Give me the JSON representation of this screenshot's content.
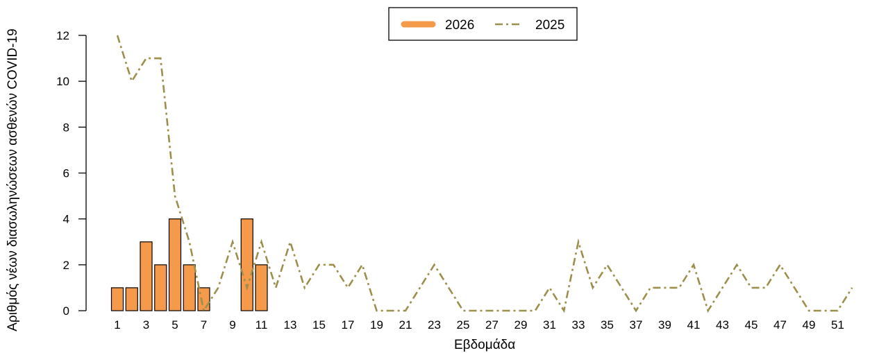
{
  "chart_data": {
    "type": "bar+line",
    "xlabel": "Εβδομάδα",
    "ylabel": "Αριθμός νέων διασωληνώσεων ασθενών COVID-19",
    "ylim": [
      0,
      12
    ],
    "yticks": [
      0,
      2,
      4,
      6,
      8,
      10,
      12
    ],
    "xlim": [
      0,
      53
    ],
    "xticks": [
      1,
      3,
      5,
      7,
      9,
      11,
      13,
      15,
      17,
      19,
      21,
      23,
      25,
      27,
      29,
      31,
      33,
      35,
      37,
      39,
      41,
      43,
      45,
      47,
      49,
      51
    ],
    "legend_position": "top-center",
    "grid": false,
    "series": [
      {
        "name": "2026",
        "kind": "bar",
        "color": "#F5994A",
        "weeks": [
          1,
          2,
          3,
          4,
          5,
          6,
          7,
          8,
          9,
          10,
          11
        ],
        "values": [
          1,
          1,
          3,
          2,
          4,
          2,
          1,
          0,
          0,
          4,
          2
        ]
      },
      {
        "name": "2025",
        "kind": "line",
        "style": "dash-dot",
        "color": "#9C8F4C",
        "weeks": [
          1,
          2,
          3,
          4,
          5,
          6,
          7,
          8,
          9,
          10,
          11,
          12,
          13,
          14,
          15,
          16,
          17,
          18,
          19,
          20,
          21,
          22,
          23,
          24,
          25,
          26,
          27,
          28,
          29,
          30,
          31,
          32,
          33,
          34,
          35,
          36,
          37,
          38,
          39,
          40,
          41,
          42,
          43,
          44,
          45,
          46,
          47,
          48,
          49,
          50,
          51,
          52
        ],
        "values": [
          12,
          10,
          11,
          11,
          5,
          3,
          0,
          1,
          3,
          1,
          3,
          1,
          3,
          1,
          2,
          2,
          1,
          2,
          0,
          0,
          0,
          1,
          2,
          1,
          0,
          0,
          0,
          0,
          0,
          0,
          1,
          0,
          3,
          1,
          2,
          1,
          0,
          1,
          1,
          1,
          2,
          0,
          1,
          2,
          1,
          1,
          2,
          1,
          0,
          0,
          0,
          1
        ]
      }
    ]
  }
}
